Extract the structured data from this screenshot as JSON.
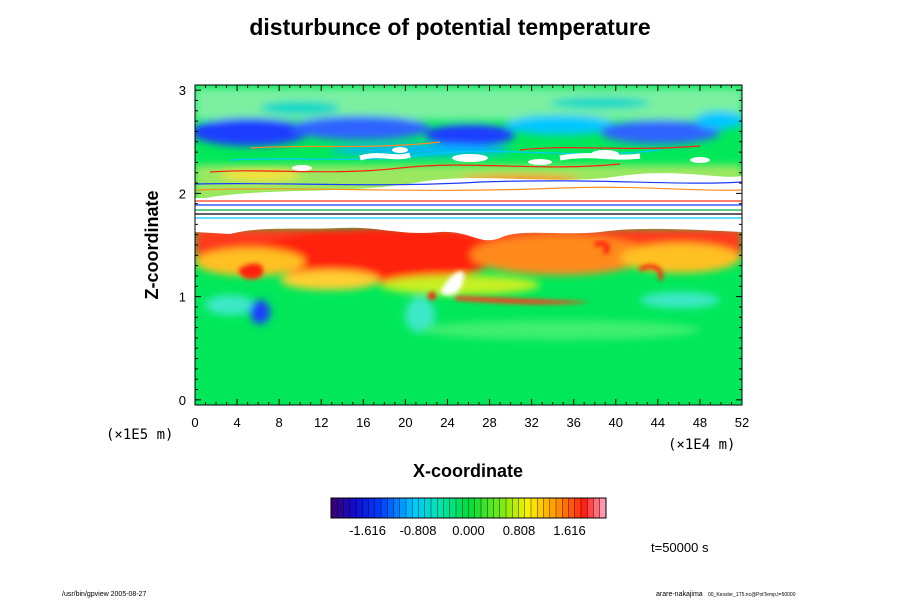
{
  "chart_data": {
    "type": "heatmap",
    "title": "disturbunce of potential temperature",
    "xlabel": "X-coordinate",
    "ylabel": "Z-coordinate",
    "x_scale_label": "(×1E4 m)",
    "y_scale_label": "(×1E5 m)",
    "x_ticks": [
      "0",
      "4",
      "8",
      "12",
      "16",
      "20",
      "24",
      "28",
      "32",
      "36",
      "40",
      "44",
      "48",
      "52"
    ],
    "y_ticks": [
      "0",
      "1",
      "2",
      "3"
    ],
    "xlim": [
      0,
      52
    ],
    "ylim": [
      -0.05,
      3.05
    ],
    "colorbar": {
      "tick_labels": [
        "-1.616",
        "-0.808",
        "0.000",
        "0.808",
        "1.616"
      ],
      "range": [
        -2.2,
        2.2
      ],
      "colormap": "rainbow"
    },
    "time_label": "t=50000 s",
    "colors": {
      "background_field": "#00e85a",
      "warm_layer": "#ff3a1a",
      "cold_band": "#1a3cff",
      "undefined_region": "#ffffff"
    }
  },
  "footer": {
    "left": "/usr/bin/gpview 2005-08-27",
    "right_main": "arare-nakajima",
    "right_small": "00_Kessler_1T5.nc@PotTemp,t=50000"
  }
}
